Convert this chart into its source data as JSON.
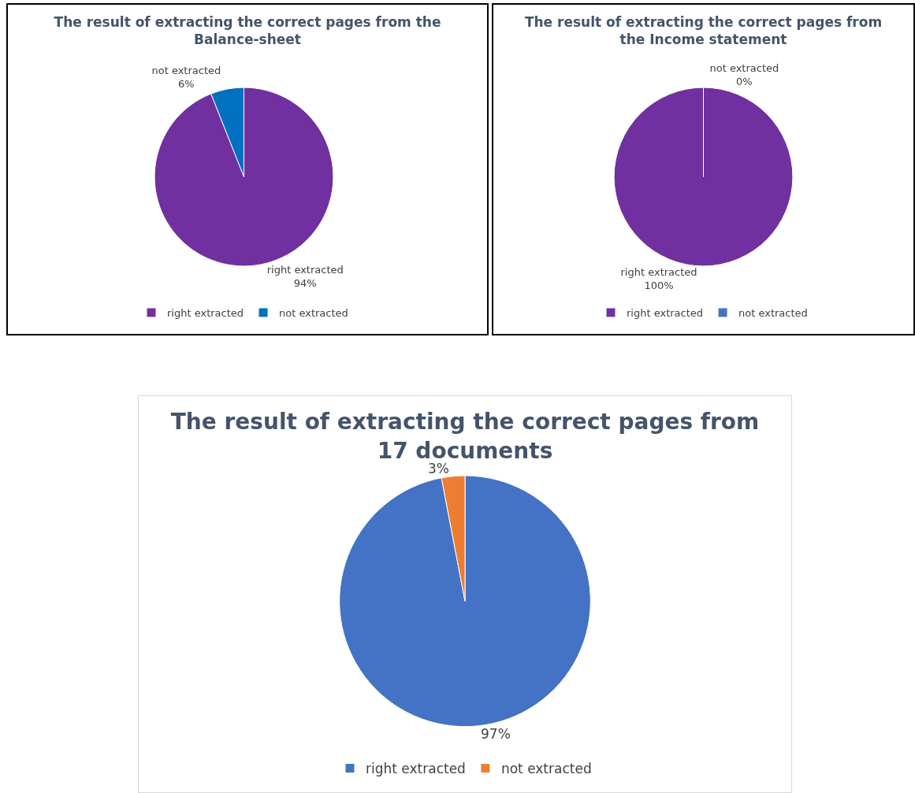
{
  "chart_data": [
    {
      "type": "pie",
      "title": "The result of extracting the correct pages from the Balance-sheet",
      "categories": [
        "right extracted",
        "not extracted"
      ],
      "values": [
        94,
        6
      ],
      "colors": [
        "#7030a0",
        "#0070c0"
      ],
      "value_labels": [
        "right extracted\n94%",
        "not extracted\n6%"
      ],
      "legend": "bottom"
    },
    {
      "type": "pie",
      "title": "The result of extracting the correct pages from the Income statement",
      "categories": [
        "right extracted",
        "not extracted"
      ],
      "values": [
        100,
        0
      ],
      "colors": [
        "#7030a0",
        "#4472c4"
      ],
      "value_labels": [
        "right extracted\n100%",
        "not extracted\n0%"
      ],
      "legend": "bottom"
    },
    {
      "type": "pie",
      "title": "The result of extracting the correct pages from 17 documents",
      "categories": [
        "right extracted",
        "not extracted"
      ],
      "values": [
        97,
        3
      ],
      "colors": [
        "#4472c4",
        "#ed7d31"
      ],
      "value_labels": [
        "97%",
        "3%"
      ],
      "legend": "bottom"
    }
  ]
}
